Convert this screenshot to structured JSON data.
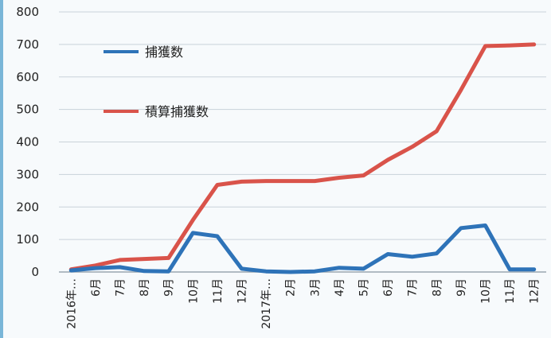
{
  "chart_data": {
    "type": "line",
    "categories": [
      "2016年…",
      "6月",
      "7月",
      "8月",
      "9月",
      "10月",
      "11月",
      "12月",
      "2017年…",
      "2月",
      "3月",
      "4月",
      "5月",
      "6月",
      "7月",
      "8月",
      "9月",
      "10月",
      "11月",
      "12月"
    ],
    "series": [
      {
        "name": "捕獲数",
        "color": "#2e73b8",
        "values": [
          5,
          12,
          15,
          3,
          2,
          120,
          110,
          10,
          2,
          0,
          2,
          13,
          10,
          55,
          47,
          57,
          135,
          143,
          8,
          8
        ]
      },
      {
        "name": "積算捕獲数",
        "color": "#d9534a",
        "values": [
          8,
          20,
          37,
          40,
          43,
          160,
          268,
          278,
          280,
          280,
          280,
          290,
          297,
          345,
          385,
          433,
          560,
          695,
          697,
          700
        ]
      }
    ],
    "yticks": [
      "0",
      "100",
      "200",
      "300",
      "400",
      "500",
      "600",
      "700",
      "800"
    ],
    "ylim": [
      0,
      800
    ],
    "grid": true,
    "legend_position": "upper-left inside plot"
  }
}
